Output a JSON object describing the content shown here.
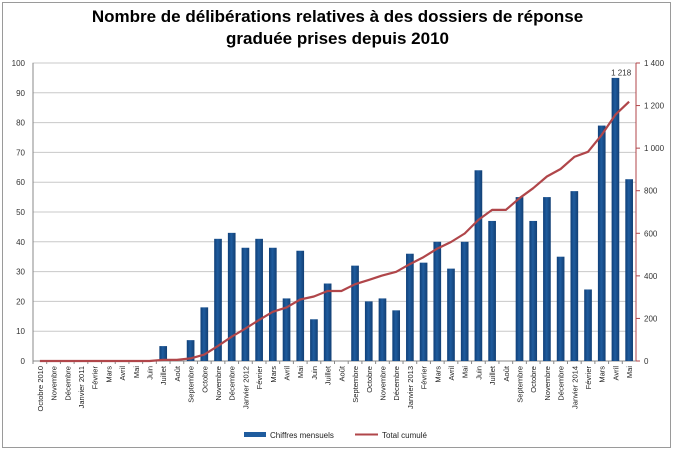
{
  "chart_data": {
    "type": "bar",
    "title_line1": "Nombre de délibérations relatives à des dossiers de réponse",
    "title_line2": "graduée prises depuis 2010",
    "categories": [
      "Octobre 2010",
      "Novembre",
      "Décembre",
      "Janvier 2011",
      "Février",
      "Mars",
      "Avril",
      "Mai",
      "Juin",
      "Juillet",
      "Août",
      "Septembre",
      "Octobre",
      "Novembre",
      "Décembre",
      "Janvier 2012",
      "Février",
      "Mars",
      "Avril",
      "Mai",
      "Juin",
      "Juillet",
      "Août",
      "Septembre",
      "Octobre",
      "Novembre",
      "Décembre",
      "Janvier 2013",
      "Février",
      "Mars",
      "Avril",
      "Mai",
      "Juin",
      "Juillet",
      "Août",
      "Septembre",
      "Octobre",
      "Novembre",
      "Décembre",
      "Janvier 2014",
      "Février",
      "Mars",
      "Avril",
      "Mai"
    ],
    "series": [
      {
        "name": "Chiffres mensuels",
        "axis": "left",
        "type": "bar",
        "color": "#1f5c9e",
        "values": [
          0,
          0,
          0,
          0,
          0,
          0,
          0,
          0,
          0,
          5,
          0,
          7,
          18,
          41,
          43,
          38,
          41,
          38,
          21,
          37,
          14,
          26,
          0,
          32,
          20,
          21,
          17,
          36,
          33,
          40,
          31,
          40,
          64,
          47,
          0,
          55,
          47,
          55,
          35,
          57,
          24,
          79,
          95,
          61
        ]
      },
      {
        "name": "Total cumulé",
        "axis": "right",
        "type": "line",
        "color": "#b0464a",
        "values": [
          0,
          0,
          0,
          0,
          0,
          0,
          0,
          0,
          0,
          5,
          5,
          12,
          30,
          71,
          114,
          152,
          193,
          231,
          252,
          289,
          303,
          329,
          329,
          361,
          381,
          402,
          419,
          455,
          488,
          528,
          559,
          599,
          663,
          710,
          710,
          765,
          812,
          867,
          902,
          959,
          983,
          1062,
          1157,
          1218
        ]
      }
    ],
    "y_left": {
      "min": 0,
      "max": 100,
      "ticks": [
        "0",
        "10",
        "20",
        "30",
        "40",
        "50",
        "60",
        "70",
        "80",
        "90",
        "100"
      ]
    },
    "y_right": {
      "min": 0,
      "max": 1400,
      "ticks": [
        "0",
        "200",
        "400",
        "600",
        "800",
        "1 000",
        "1 200",
        "1 400"
      ]
    },
    "annotation": "1 218",
    "legend": [
      "Chiffres mensuels",
      "Total cumulé"
    ],
    "grid": true
  }
}
